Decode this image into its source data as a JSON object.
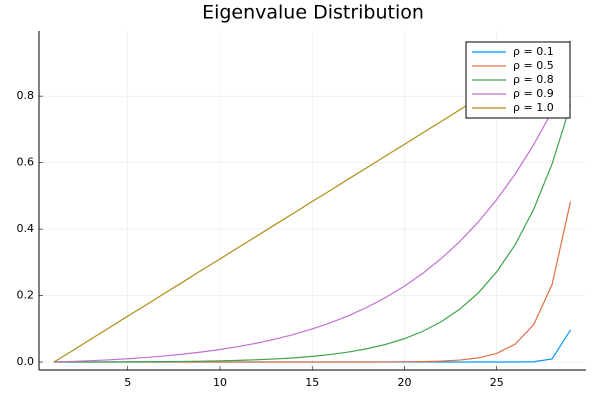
{
  "chart_data": {
    "type": "line",
    "title": "Eigenvalue Distribution",
    "x": [
      1,
      2,
      3,
      4,
      5,
      6,
      7,
      8,
      9,
      10,
      11,
      12,
      13,
      14,
      15,
      16,
      17,
      18,
      19,
      20,
      21,
      22,
      23,
      24,
      25,
      26,
      27,
      28,
      29
    ],
    "series": [
      {
        "name": "ρ = 0.1",
        "color": "#009af9",
        "values": [
          0,
          0,
          0,
          0,
          0,
          0,
          0,
          0,
          0,
          0,
          0,
          0,
          0,
          0,
          0,
          0,
          0,
          0,
          0,
          0,
          0,
          0,
          0,
          0,
          0,
          0.0001,
          0.0009,
          0.0093,
          0.0966
        ]
      },
      {
        "name": "ρ = 0.5",
        "color": "#e26f46",
        "values": [
          0,
          0,
          0,
          0,
          0,
          0,
          0,
          0,
          0,
          0,
          0,
          0,
          0,
          0,
          0,
          0,
          0,
          0.0001,
          0.0003,
          0.0006,
          0.0013,
          0.0028,
          0.0059,
          0.0124,
          0.0259,
          0.0539,
          0.1121,
          0.2328,
          0.4828
        ]
      },
      {
        "name": "ρ = 0.8",
        "color": "#3ea44e",
        "values": [
          0,
          0.0001,
          0.0002,
          0.0003,
          0.0005,
          0.0008,
          0.0012,
          0.0018,
          0.0025,
          0.0036,
          0.005,
          0.0068,
          0.0093,
          0.0126,
          0.017,
          0.0228,
          0.0303,
          0.0403,
          0.0533,
          0.0704,
          0.0926,
          0.1215,
          0.1591,
          0.2079,
          0.2712,
          0.3531,
          0.459,
          0.5959,
          0.7724
        ]
      },
      {
        "name": "ρ = 0.9",
        "color": "#c271d2",
        "values": [
          0,
          0.0018,
          0.004,
          0.0067,
          0.0099,
          0.0138,
          0.0183,
          0.0238,
          0.0302,
          0.0377,
          0.0466,
          0.0569,
          0.069,
          0.0831,
          0.0994,
          0.1183,
          0.1402,
          0.1655,
          0.1948,
          0.2285,
          0.2672,
          0.3117,
          0.3628,
          0.4215,
          0.4887,
          0.5656,
          0.6536,
          0.7541,
          0.869
        ]
      },
      {
        "name": "ρ = 1.0",
        "color": "#ac8e18",
        "values": [
          0,
          0.034,
          0.069,
          0.103,
          0.138,
          0.172,
          0.207,
          0.241,
          0.276,
          0.31,
          0.345,
          0.379,
          0.414,
          0.448,
          0.483,
          0.517,
          0.552,
          0.586,
          0.621,
          0.655,
          0.69,
          0.724,
          0.759,
          0.793,
          0.828,
          0.862,
          0.897,
          0.931,
          0.966
        ]
      }
    ],
    "xlim": [
      0.19,
      29.84
    ],
    "xticks": [
      5,
      10,
      15,
      20,
      25
    ],
    "ylim": [
      -0.024,
      0.996
    ],
    "yticks": [
      {
        "value": 0,
        "label": "0.0"
      },
      0.2,
      0.4,
      0.6,
      0.8
    ],
    "grid": true,
    "legend": "top-right"
  }
}
